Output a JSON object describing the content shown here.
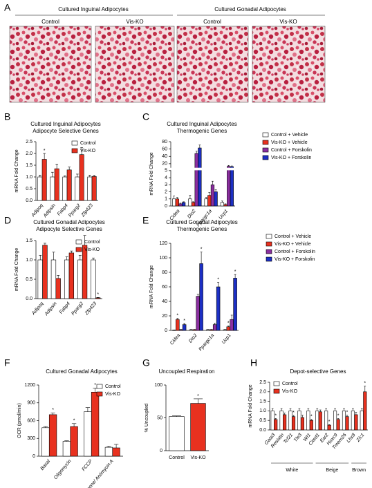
{
  "panel_a": {
    "letter": "A",
    "groups": [
      {
        "title": "Cultured Inguinal Adipocytes",
        "images": [
          "Control",
          "Vis-KO"
        ]
      },
      {
        "title": "Cultured Gonadal Adipocytes",
        "images": [
          "Control",
          "Vis-KO"
        ]
      }
    ]
  },
  "chart_data": [
    {
      "type": "bar",
      "panel": "B",
      "title": "Cultured Inguinal Adipocytes",
      "subtitle": "Adipocyte Selective Genes",
      "ylabel": "mRNA Fold Change",
      "categories": [
        "Adipoq",
        "Adipsin",
        "Fabp4",
        "Pparg2",
        "Zfp423"
      ],
      "series": [
        {
          "name": "Control",
          "color": "#ffffff",
          "values": [
            1,
            1,
            1,
            1,
            1
          ],
          "errors": [
            0.08,
            0.2,
            0.05,
            0.12,
            0.08
          ]
        },
        {
          "name": "Vis-KO",
          "color": "#e8311f",
          "values": [
            1.75,
            1.35,
            1.3,
            1.95,
            1.02
          ],
          "errors": [
            0.25,
            0.2,
            0.12,
            0.3,
            0.05
          ]
        }
      ],
      "ylim": [
        0,
        2.5
      ],
      "yticks": [
        {
          "value": 0,
          "label": "0.0"
        },
        0.5,
        {
          "value": 1,
          "label": "1.0"
        },
        1.5,
        {
          "value": 2,
          "label": "2.0"
        },
        2.5
      ],
      "legend": "upper right",
      "annotations": [
        {
          "text": "*",
          "category": "Adipoq",
          "series": "Vis-KO"
        }
      ]
    },
    {
      "type": "bar",
      "panel": "C",
      "title": "Cultured Inguinal Adipocytes",
      "subtitle": "Thermogenic Genes",
      "ylabel": "mRNA Fold Change",
      "categories": [
        "Cidea",
        "Dio2",
        "Ppargc1a",
        "Ucp1"
      ],
      "series": [
        {
          "name": "Control + Vehicle",
          "color": "#ffffff",
          "values": [
            1,
            1,
            1,
            0.5
          ],
          "errors": [
            0.4,
            0.5,
            0.2,
            0.2
          ]
        },
        {
          "name": "Vis-KO + Vehicle",
          "color": "#e8311f",
          "values": [
            1,
            0.5,
            1.5,
            0.2
          ],
          "errors": [
            0.2,
            0.1,
            0.4,
            0.1
          ]
        },
        {
          "name": "Control + Forskolin",
          "color": "#8b2fa0",
          "values": [
            0.3,
            48,
            3,
            13
          ],
          "errors": [
            0.1,
            6,
            0.5,
            2.5
          ]
        },
        {
          "name": "Vis-KO + Forskolin",
          "color": "#1c2fc4",
          "values": [
            0.5,
            63,
            2,
            12
          ],
          "errors": [
            0.1,
            8,
            0.3,
            2
          ]
        }
      ],
      "ylim": [
        0,
        80
      ],
      "ybreak": [
        5,
        10
      ],
      "yticks": [
        0,
        1,
        2,
        3,
        4,
        5,
        20,
        40,
        60,
        80
      ],
      "legend": "right",
      "annotations": []
    },
    {
      "type": "bar",
      "panel": "D",
      "title": "Cultured Gonadal Adipocytes",
      "subtitle": "Adipocyte Selective Genes",
      "ylabel": "mRNA Fold Change",
      "categories": [
        "Adipoq",
        "Adipsin",
        "Fabp4",
        "Pparg2",
        "Zfp423"
      ],
      "series": [
        {
          "name": "Control",
          "color": "#ffffff",
          "values": [
            1,
            1,
            1,
            1,
            1
          ],
          "errors": [
            0.12,
            0.2,
            0.08,
            0.12,
            0.05
          ]
        },
        {
          "name": "Vis-KO",
          "color": "#e8311f",
          "values": [
            1.38,
            0.52,
            1.18,
            1.38,
            0.02
          ],
          "errors": [
            0.05,
            0.08,
            0.05,
            0.25,
            0.01
          ]
        }
      ],
      "ylim": [
        0,
        1.5
      ],
      "yticks": [
        {
          "value": 0,
          "label": "0.0"
        },
        0.5,
        {
          "value": 1,
          "label": "1.0"
        },
        1.5
      ],
      "legend": "upper right",
      "annotations": [
        {
          "text": "*",
          "category": "Zfp423",
          "series": "Vis-KO"
        }
      ]
    },
    {
      "type": "bar",
      "panel": "E",
      "title": "Cultured Gonadal Adipocytes",
      "subtitle": "Thermogenic Genes",
      "ylabel": "mRNA Fold Change",
      "categories": [
        "Cidea",
        "Dio2",
        "Ppargc1a",
        "Ucp1"
      ],
      "series": [
        {
          "name": "Control + Vehicle",
          "color": "#ffffff",
          "values": [
            0.5,
            1,
            1,
            1
          ],
          "errors": [
            0.2,
            0.3,
            0.3,
            0.3
          ]
        },
        {
          "name": "Vis-KO + Vehicle",
          "color": "#e8311f",
          "values": [
            15,
            1,
            1,
            5
          ],
          "errors": [
            1.5,
            0.3,
            0.3,
            1
          ]
        },
        {
          "name": "Control + Forskolin",
          "color": "#8b2fa0",
          "values": [
            1,
            47,
            8,
            15
          ],
          "errors": [
            0.3,
            3,
            2,
            6
          ]
        },
        {
          "name": "Vis-KO + Forskolin",
          "color": "#1c2fc4",
          "values": [
            8,
            92,
            60,
            72
          ],
          "errors": [
            1.5,
            16,
            6,
            5
          ]
        }
      ],
      "ylim": [
        0,
        120
      ],
      "yticks": [
        0,
        20,
        40,
        60,
        80,
        100,
        120
      ],
      "legend": "right",
      "annotations": [
        {
          "text": "*",
          "category": "Cidea",
          "series": "Vis-KO + Vehicle"
        },
        {
          "text": "*",
          "category": "Cidea",
          "series": "Vis-KO + Forskolin"
        },
        {
          "text": "*",
          "category": "Dio2",
          "series": "Vis-KO + Forskolin"
        },
        {
          "text": "*",
          "category": "Ppargc1a",
          "series": "Vis-KO + Forskolin"
        },
        {
          "text": "*",
          "category": "Ucp1",
          "series": "Vis-KO + Vehicle"
        },
        {
          "text": "*",
          "category": "Ucp1",
          "series": "Vis-KO + Forskolin"
        }
      ]
    },
    {
      "type": "bar",
      "panel": "F",
      "title": "Cultured Gonadal Adipocytes",
      "ylabel": "OCR (pmol/min)",
      "categories": [
        "Basal",
        "Oligomycin",
        "FCCP",
        "Rotenone/ Antimycin A"
      ],
      "series": [
        {
          "name": "Control",
          "color": "#ffffff",
          "values": [
            480,
            250,
            750,
            150
          ],
          "errors": [
            20,
            10,
            70,
            20
          ]
        },
        {
          "name": "Vis-KO",
          "color": "#e8311f",
          "values": [
            700,
            500,
            1080,
            140
          ],
          "errors": [
            30,
            50,
            70,
            60
          ]
        }
      ],
      "ylim": [
        0,
        1200
      ],
      "yticks": [
        0,
        300,
        600,
        900,
        1200
      ],
      "legend": "upper right",
      "annotations": [
        {
          "text": "*",
          "category": "Basal",
          "series": "Vis-KO"
        },
        {
          "text": "*",
          "category": "Oligomycin",
          "series": "Vis-KO"
        },
        {
          "text": "*",
          "category": "FCCP",
          "series": "Vis-KO"
        }
      ]
    },
    {
      "type": "bar",
      "panel": "G",
      "title": "Uncoupled Respiration",
      "ylabel": "% Uncoupled",
      "categories": [
        "Control",
        "Vis-KO"
      ],
      "values": [
        52,
        72
      ],
      "errors": [
        1,
        7
      ],
      "colors": [
        "#ffffff",
        "#e8311f"
      ],
      "ylim": [
        0,
        100
      ],
      "yticks": [
        0,
        50,
        100
      ],
      "annotations": [
        {
          "text": "*",
          "category": "Vis-KO"
        }
      ]
    },
    {
      "type": "bar",
      "panel": "H",
      "title": "Depot-selective Genes",
      "ylabel": "mRNA Fold Change",
      "categories": [
        "Gata3",
        "Resistin",
        "Tcf21",
        "Tle3",
        "Wt1",
        "Cited1",
        "Ear2",
        "Hoxc9",
        "Tmem26",
        "Lhx8",
        "Zic1"
      ],
      "series": [
        {
          "name": "Control",
          "color": "#ffffff",
          "values": [
            1,
            1,
            1,
            1,
            1,
            1,
            1,
            1,
            1,
            1,
            1
          ],
          "errors": [
            0.12,
            0.12,
            0.12,
            0.12,
            0.12,
            0.12,
            0.12,
            0.12,
            0.12,
            0.12,
            0.12
          ]
        },
        {
          "name": "Vis-KO",
          "color": "#e8311f",
          "values": [
            0.55,
            0.8,
            0.7,
            0.65,
            0.5,
            0.95,
            0.25,
            0.55,
            0.7,
            0.8,
            2.0
          ],
          "errors": [
            0.05,
            0.08,
            0.06,
            0.12,
            0.05,
            0.1,
            0.03,
            0.05,
            0.08,
            0.12,
            0.3
          ]
        }
      ],
      "ylim": [
        0,
        2.5
      ],
      "yticks": [
        {
          "value": 0,
          "label": "0.0"
        },
        0.5,
        {
          "value": 1,
          "label": "1.0"
        },
        1.5,
        {
          "value": 2,
          "label": "2.0"
        },
        2.5
      ],
      "legend": "upper left",
      "groups": [
        {
          "label": "White",
          "from": "Gata3",
          "to": "Wt1"
        },
        {
          "label": "Beige",
          "from": "Cited1",
          "to": "Tmem26"
        },
        {
          "label": "Brown",
          "from": "Lhx8",
          "to": "Zic1"
        }
      ],
      "annotations": [
        {
          "text": "*",
          "category": "Gata3",
          "series": "Vis-KO"
        },
        {
          "text": "*",
          "category": "Tcf21",
          "series": "Vis-KO"
        },
        {
          "text": "*",
          "category": "Wt1",
          "series": "Vis-KO"
        },
        {
          "text": "*",
          "category": "Ear2",
          "series": "Vis-KO"
        },
        {
          "text": "*",
          "category": "Hoxc9",
          "series": "Vis-KO"
        },
        {
          "text": "*",
          "category": "Tmem26",
          "series": "Vis-KO"
        },
        {
          "text": "*",
          "category": "Zic1",
          "series": "Vis-KO"
        }
      ]
    }
  ]
}
